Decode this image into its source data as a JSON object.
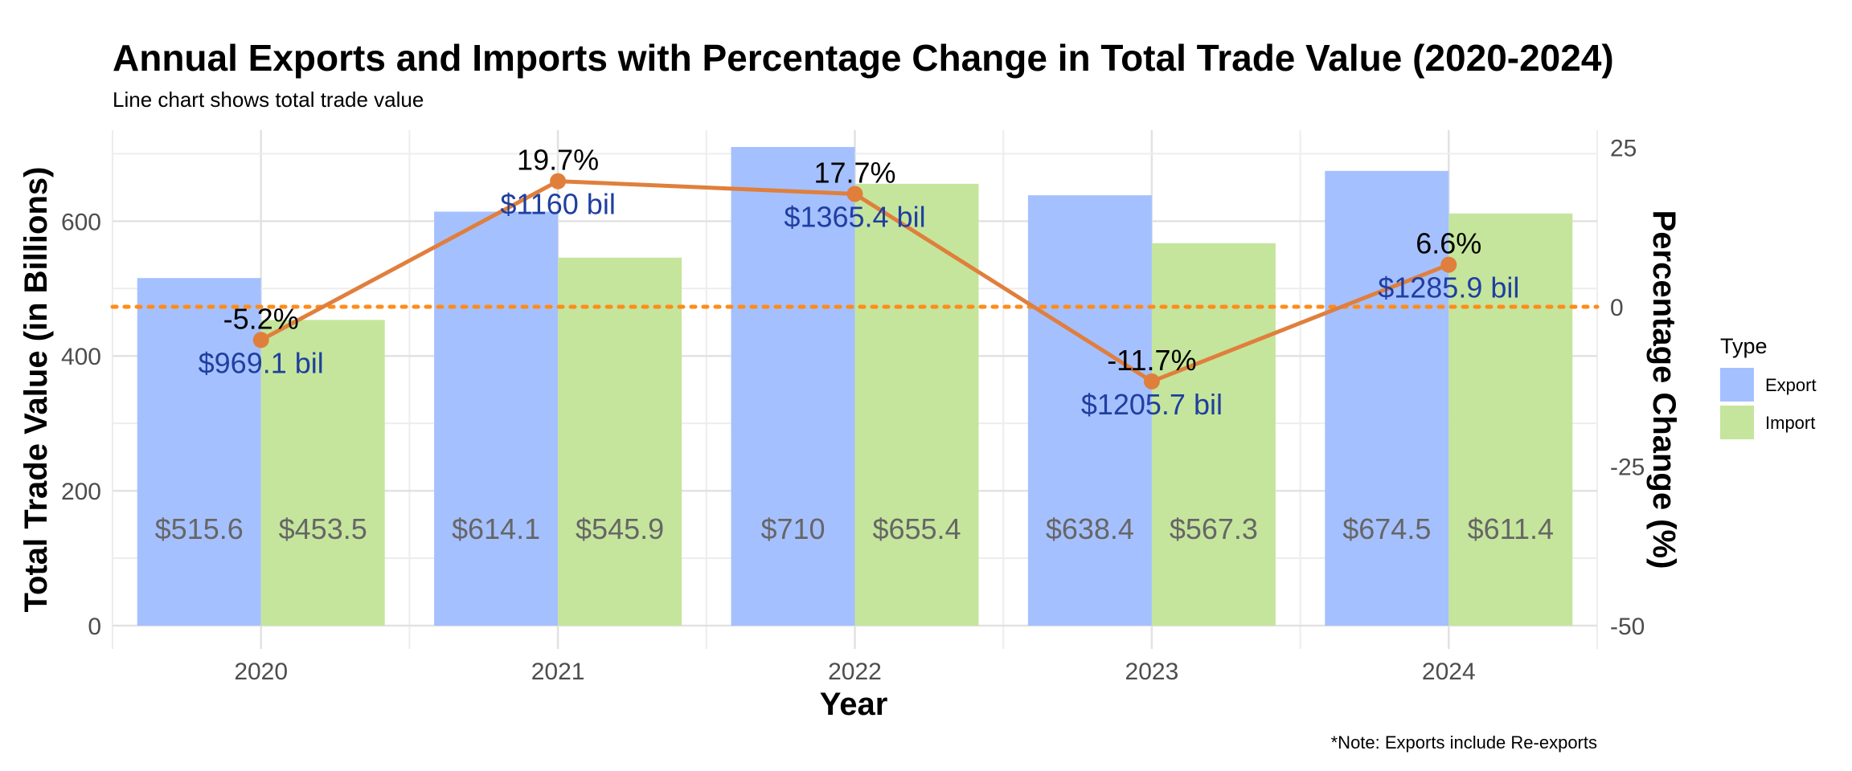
{
  "chart_data": {
    "type": "bar",
    "title": "Annual Exports and Imports with Percentage Change in Total Trade Value (2020-2024)",
    "subtitle": "Line chart shows total trade value",
    "xlabel": "Year",
    "ylabel": "Total Trade Value (in Billions)",
    "y2label": "Percentage Change (%)",
    "caption": "*Note: Exports include Re-exports",
    "categories": [
      "2020",
      "2021",
      "2022",
      "2023",
      "2024"
    ],
    "ylim": [
      0,
      730
    ],
    "y_ticks": [
      0,
      200,
      400,
      600
    ],
    "y2lim": [
      -50,
      28
    ],
    "y2_ticks": [
      25,
      0,
      -25,
      -50
    ],
    "grid": true,
    "legend": {
      "title": "Type",
      "position": "right",
      "entries": [
        "Export",
        "Import"
      ]
    },
    "series": [
      {
        "name": "Export",
        "color": "#a5c0ff",
        "values": [
          515.6,
          614.1,
          710,
          638.4,
          674.5
        ],
        "labels": [
          "$515.6",
          "$614.1",
          "$710",
          "$638.4",
          "$674.5"
        ]
      },
      {
        "name": "Import",
        "color": "#c5e59c",
        "values": [
          453.5,
          545.9,
          655.4,
          567.3,
          611.4
        ],
        "labels": [
          "$453.5",
          "$545.9",
          "$655.4",
          "$567.3",
          "$611.4"
        ]
      }
    ],
    "line": {
      "color": "#e07f3c",
      "pct_change": [
        -5.2,
        19.7,
        17.7,
        -11.7,
        6.6
      ],
      "pct_labels": [
        "-5.2%",
        "19.7%",
        "17.7%",
        "-11.7%",
        "6.6%"
      ],
      "total_labels": [
        "$969.1 bil",
        "$1160 bil",
        "$1365.4 bil",
        "$1205.7 bil",
        "$1285.9 bil"
      ]
    },
    "reference_line": {
      "y2": 0,
      "style": "dotted",
      "color": "#ff8c1a"
    }
  }
}
